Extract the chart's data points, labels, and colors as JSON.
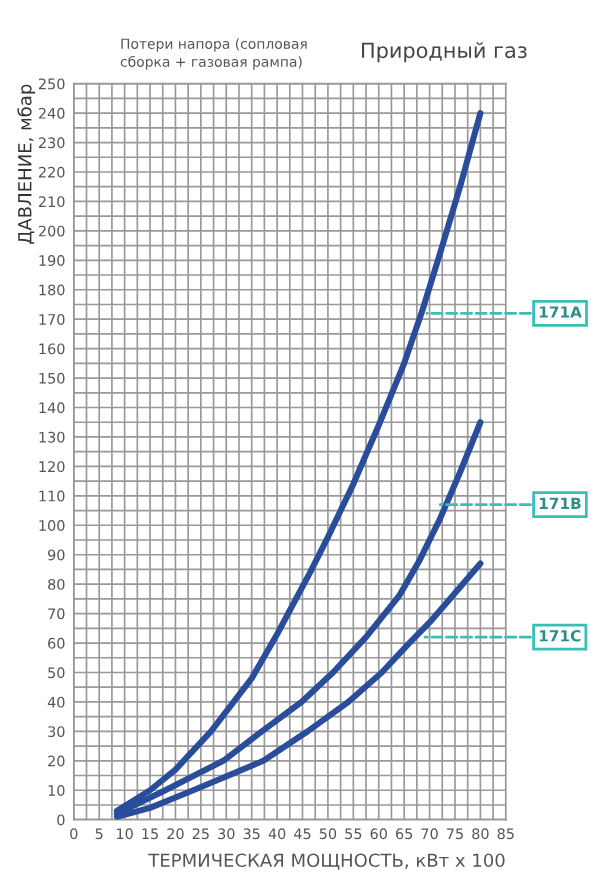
{
  "chart_data": {
    "type": "line",
    "subtitle": "Природный газ",
    "xlabel": "ТЕРМИЧЕСКАЯ МОЩНОСТЬ, кВт х 100",
    "ylabel": "ДАВЛЕНИЕ, мбар",
    "xlim": [
      0,
      85
    ],
    "ylim": [
      0,
      250
    ],
    "xticks": [
      0,
      5,
      10,
      15,
      20,
      25,
      30,
      35,
      40,
      45,
      50,
      55,
      60,
      65,
      70,
      75,
      80,
      85
    ],
    "yticks": [
      0,
      10,
      20,
      30,
      40,
      50,
      60,
      70,
      80,
      90,
      100,
      110,
      120,
      130,
      140,
      150,
      160,
      170,
      180,
      190,
      200,
      210,
      220,
      230,
      240,
      250
    ],
    "grid": true,
    "marker": "none",
    "line_style": "solid",
    "series": [
      {
        "color": "#2a4d9b",
        "x": [
          8.5,
          15,
          20,
          27,
          35,
          40,
          46.5,
          50,
          55,
          60,
          65,
          68.4,
          72,
          76,
          80
        ],
        "values": [
          3,
          10,
          17,
          30,
          48,
          63,
          84,
          96,
          114,
          134,
          155,
          172,
          192,
          215,
          240
        ]
      },
      {
        "color": "#2a4d9b",
        "x": [
          8.5,
          18,
          29.4,
          37,
          44.8,
          51,
          57.5,
          64,
          68,
          72,
          76,
          80
        ],
        "values": [
          2,
          10,
          20,
          30,
          40,
          50,
          62,
          76,
          88,
          102,
          118,
          135
        ]
      },
      {
        "color": "#2a4d9b",
        "x": [
          8.5,
          15,
          23.5,
          37.3,
          46,
          54,
          60.6,
          66,
          70,
          74,
          77,
          80
        ],
        "values": [
          1,
          4,
          10,
          20,
          30,
          40,
          50,
          60,
          67,
          75,
          81,
          87
        ]
      }
    ],
    "annotations": [
      "Потери напора (сопловая\nсборка + газовая рампа)",
      {
        "text": "171A",
        "x": 68.4,
        "y": 172
      },
      {
        "text": "171B",
        "x": 71,
        "y": 107
      },
      {
        "text": "171C",
        "x": 68,
        "y": 62
      }
    ]
  }
}
